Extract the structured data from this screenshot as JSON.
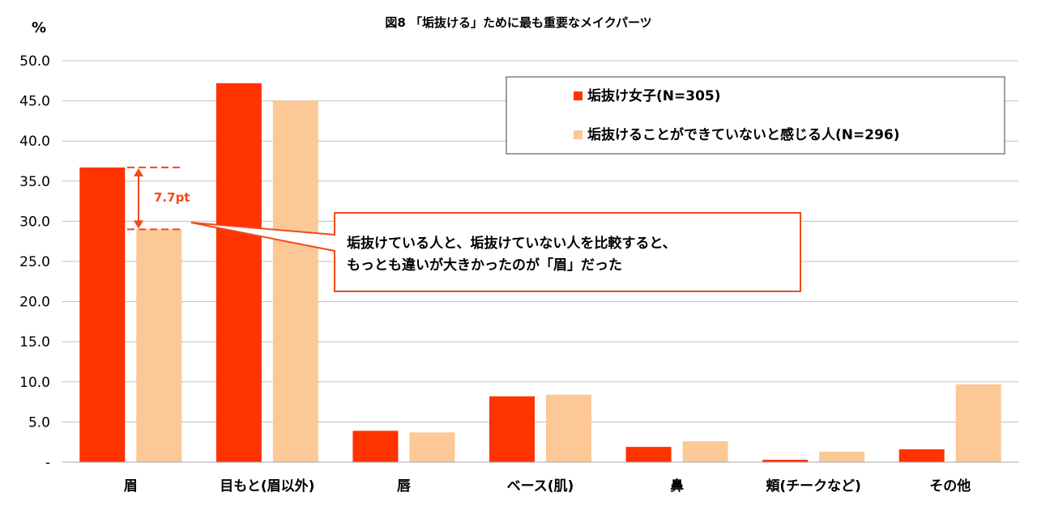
{
  "chart_data": {
    "type": "bar",
    "title": "図8 「垢抜ける」ために最も重要なメイクパーツ",
    "ylabel": "%",
    "ylim": [
      0,
      50
    ],
    "y_ticks": [
      "-",
      "5.0",
      "10.0",
      "15.0",
      "20.0",
      "25.0",
      "30.0",
      "35.0",
      "40.0",
      "45.0",
      "50.0"
    ],
    "grid": true,
    "legend_position": "top-right",
    "categories": [
      "眉",
      "目もと(眉以外)",
      "唇",
      "ベース(肌)",
      "鼻",
      "頬(チークなど)",
      "その他"
    ],
    "series": [
      {
        "name": "垢抜け女子(N=305)",
        "color": "#ff3300",
        "values": [
          36.7,
          47.2,
          3.9,
          8.2,
          1.9,
          0.3,
          1.6
        ]
      },
      {
        "name": "垢抜けることができていないと感じる人(N=296)",
        "color": "#fcc896",
        "values": [
          29.0,
          45.0,
          3.7,
          8.4,
          2.6,
          1.3,
          9.7
        ]
      }
    ],
    "annotations": {
      "difference_label": "7.7pt",
      "callout_lines": [
        "垢抜けている人と、垢抜けていない人を比較すると、",
        "もっとも違いが大きかったのが「眉」だった"
      ],
      "accent_color": "#f04a1c"
    }
  }
}
